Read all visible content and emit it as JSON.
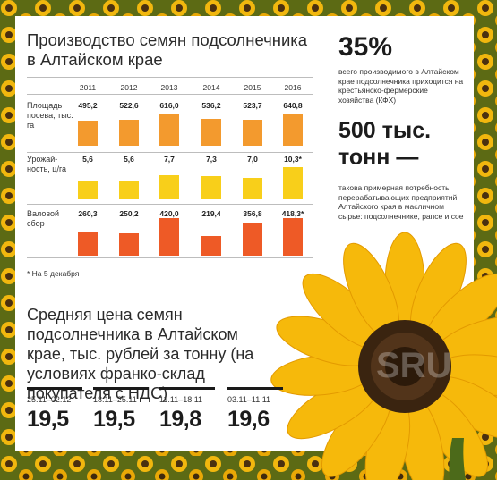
{
  "header": {
    "title": "Производство семян подсолнечника в Алтайском крае"
  },
  "chart_data": {
    "type": "bar",
    "categories": [
      "2011",
      "2012",
      "2013",
      "2014",
      "2015",
      "2016"
    ],
    "series": [
      {
        "name": "Площадь посева, тыс. га",
        "values": [
          495.2,
          522.6,
          616.0,
          536.2,
          523.7,
          640.8
        ],
        "labels": [
          "495,2",
          "522,6",
          "616,0",
          "536,2",
          "523,7",
          "640,8"
        ],
        "color": "#f39a2e"
      },
      {
        "name": "Урожай- ность, ц/га",
        "values": [
          5.6,
          5.6,
          7.7,
          7.3,
          7.0,
          10.3
        ],
        "labels": [
          "5,6",
          "5,6",
          "7,7",
          "7,3",
          "7,0",
          "10,3*"
        ],
        "color": "#f8cf1a"
      },
      {
        "name": "Валовой сбор",
        "values": [
          260.3,
          250.2,
          420.0,
          219.4,
          356.8,
          418.3
        ],
        "labels": [
          "260,3",
          "250,2",
          "420,0",
          "219,4",
          "356,8",
          "418,3*"
        ],
        "color": "#ee5a26"
      }
    ],
    "footnote": "* На 5 декабря"
  },
  "stats": {
    "pct": "35%",
    "pct_desc": "всего производимого в Алтайском крае подсолнечника приходится на крестьянско-фермерские хозяйства (КФХ)",
    "tons": "500 тыс. тонн —",
    "tons_desc": "такова примерная потребность перерабатывающих предприятий Алтайского края в масличном сырье: подсолнечнике, рапсе и сое"
  },
  "prices": {
    "title": "Средняя цена семян подсолнечника в Алтайском крае, тыс. рублей за тонну (на условиях франко-склад покупателя с НДС)",
    "items": [
      {
        "date": "25.11–02.12",
        "value": "19,5"
      },
      {
        "date": "18.11–25.11",
        "value": "19,5"
      },
      {
        "date": "11.11–18.11",
        "value": "19,8"
      },
      {
        "date": "03.11–11.11",
        "value": "19,6"
      }
    ]
  },
  "colors": {
    "sunflower_petal": "#f6b90b",
    "sunflower_center": "#3a2410",
    "leaf": "#4c6a1a"
  },
  "watermark": "SRU"
}
